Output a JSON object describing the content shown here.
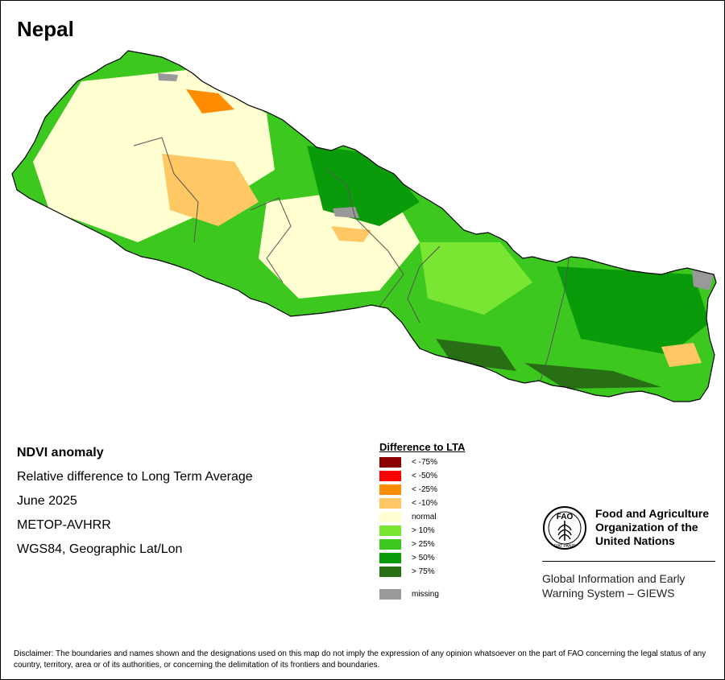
{
  "map": {
    "title": "Nepal"
  },
  "info": {
    "title": "NDVI anomaly",
    "description": "Relative difference to Long Term Average",
    "period": "June 2025",
    "sensor": "METOP-AVHRR",
    "projection": "WGS84, Geographic Lat/Lon"
  },
  "legend": {
    "title": "Difference to LTA",
    "classes": [
      {
        "label": "< -75%",
        "color": "#8b0000"
      },
      {
        "label": "< -50%",
        "color": "#ff0000"
      },
      {
        "label": "< -25%",
        "color": "#ff8c00"
      },
      {
        "label": "< -10%",
        "color": "#ffc864"
      },
      {
        "label": "normal",
        "color": "#ffffd2"
      },
      {
        "label": "> 10%",
        "color": "#78e632"
      },
      {
        "label": "> 25%",
        "color": "#3cc81e"
      },
      {
        "label": "> 50%",
        "color": "#0a9b0a"
      },
      {
        "label": "> 75%",
        "color": "#286e14"
      }
    ],
    "missing": {
      "label": "missing",
      "color": "#999999"
    }
  },
  "organization": {
    "name_line1": "Food and Agriculture",
    "name_line2": "Organization of the",
    "name_line3": "United Nations",
    "logo_text": "FAO",
    "logo_motto": "FIAT PANIS",
    "system_line1": "Global Information and Early",
    "system_line2": "Warning System – GIEWS"
  },
  "disclaimer": "Disclaimer: The boundaries and names shown and the designations used on this map do not imply the expression of any opinion whatsoever on the part of FAO concerning the legal status of any country, territory, area or of its authorities, or concerning the delimitation of its frontiers and boundaries."
}
